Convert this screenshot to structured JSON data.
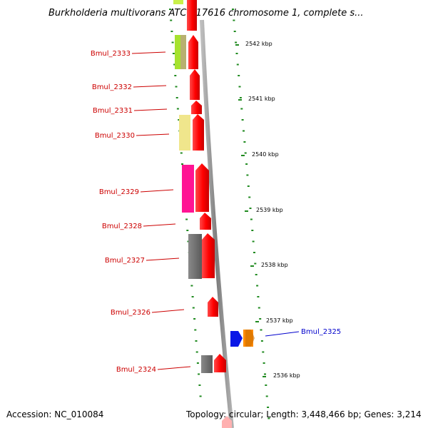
{
  "title": "Burkholderia multivorans ATCC 17616 chromosome 1, complete s...",
  "footer": {
    "accession": "Accession: NC_010084",
    "topology": "Topology: circular; Length: 3,448,466 bp; Genes: 3,214"
  },
  "colors": {
    "backbone": "#8a8a8a",
    "tick": "#1f8a1f",
    "label_left": "#cc0000",
    "label_right": "#0000cc",
    "arrow_red": "#ff0000",
    "arrow_blue": "#0a17e6",
    "arrow_orange": "#ff8c00"
  },
  "gene_labels": [
    {
      "text": "Bmul_2333",
      "side": "left"
    },
    {
      "text": "Bmul_2332",
      "side": "left"
    },
    {
      "text": "Bmul_2331",
      "side": "left"
    },
    {
      "text": "Bmul_2330",
      "side": "left"
    },
    {
      "text": "Bmul_2329",
      "side": "left"
    },
    {
      "text": "Bmul_2328",
      "side": "left"
    },
    {
      "text": "Bmul_2327",
      "side": "left"
    },
    {
      "text": "Bmul_2326",
      "side": "left"
    },
    {
      "text": "Bmul_2324",
      "side": "left"
    },
    {
      "text": "Bmul_2325",
      "side": "right"
    }
  ],
  "kbp_labels": [
    "2542 kbp",
    "2541 kbp",
    "2540 kbp",
    "2539 kbp",
    "2538 kbp",
    "2537 kbp",
    "2536 kbp"
  ]
}
